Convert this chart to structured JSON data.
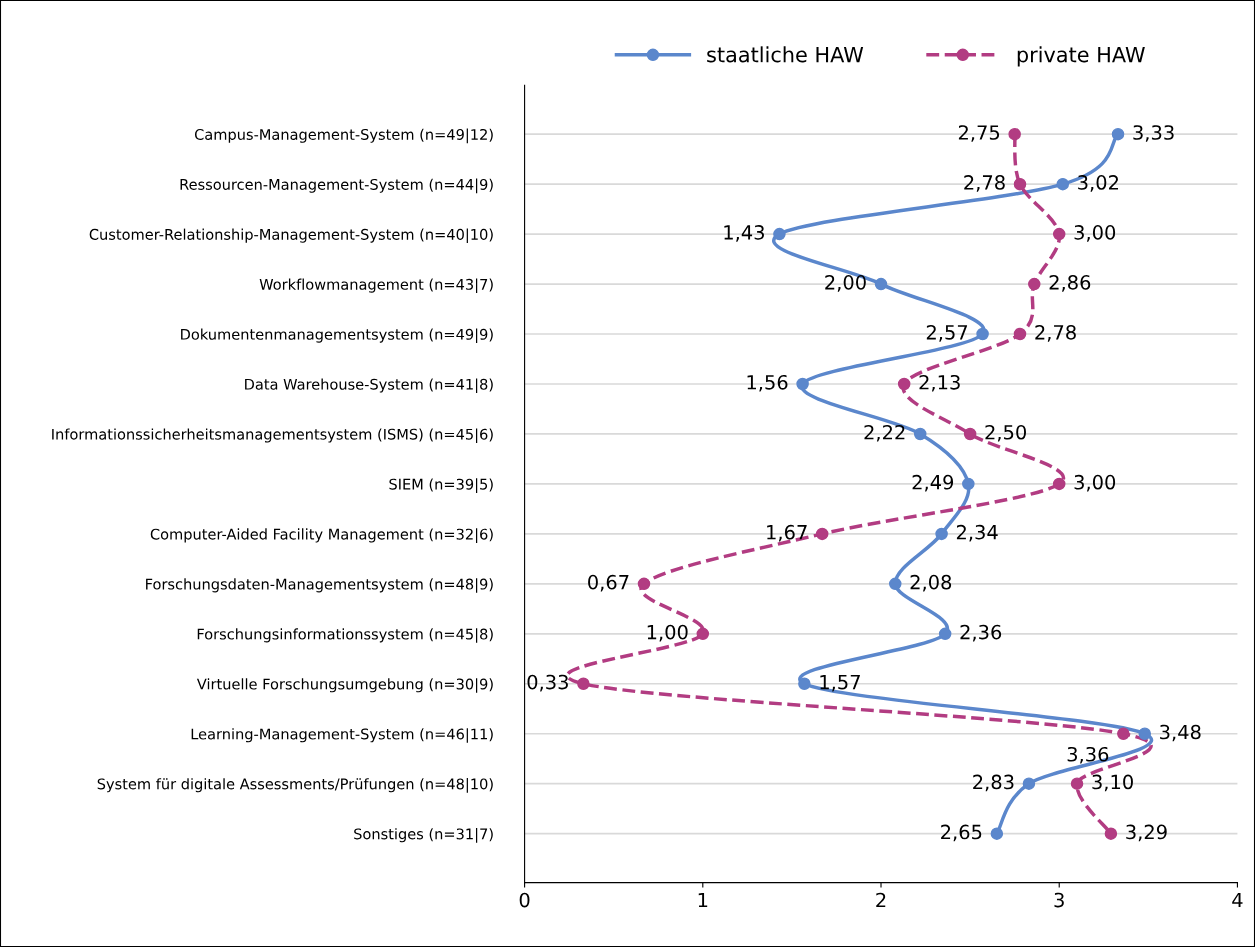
{
  "chart_data": {
    "type": "line",
    "orientation": "horizontal",
    "categories": [
      "Campus-Management-System (n=49|12)",
      "Ressourcen-Management-System (n=44|9)",
      "Customer-Relationship-Management-System (n=40|10)",
      "Workflowmanagement (n=43|7)",
      "Dokumentenmanagementsystem (n=49|9)",
      "Data Warehouse-System (n=41|8)",
      "Informationssicherheitsmanagementsystem (ISMS) (n=45|6)",
      "SIEM (n=39|5)",
      "Computer-Aided Facility Management (n=32|6)",
      "Forschungsdaten-Managementsystem (n=48|9)",
      "Forschungsinformationssystem (n=45|8)",
      "Virtuelle Forschungsumgebung (n=30|9)",
      "Learning-Management-System (n=46|11)",
      "System für digitale Assessments/Prüfungen (n=48|10)",
      "Sonstiges (n=31|7)"
    ],
    "series": [
      {
        "name": "staatliche HAW",
        "color": "#5b87cc",
        "line_style": "solid",
        "values": [
          3.33,
          3.02,
          1.43,
          2.0,
          2.57,
          1.56,
          2.22,
          2.49,
          2.34,
          2.08,
          2.36,
          1.57,
          3.48,
          2.83,
          2.65
        ],
        "value_labels": [
          "3,33",
          "3,02",
          "1,43",
          "2,00",
          "2,57",
          "1,56",
          "2,22",
          "2,49",
          "2,34",
          "2,08",
          "2,36",
          "1,57",
          "3,48",
          "2,83",
          "2,65"
        ]
      },
      {
        "name": "private HAW",
        "color": "#b23c82",
        "line_style": "dashed",
        "values": [
          2.75,
          2.78,
          3.0,
          2.86,
          2.78,
          2.13,
          2.5,
          3.0,
          1.67,
          0.67,
          1.0,
          0.33,
          3.36,
          3.1,
          3.29
        ],
        "value_labels": [
          "2,75",
          "2,78",
          "3,00",
          "2,86",
          "2,78",
          "2,13",
          "2,50",
          "3,00",
          "1,67",
          "0,67",
          "1,00",
          "0,33",
          "3,36",
          "3,10",
          "3,29"
        ]
      }
    ],
    "xlim": [
      0,
      4
    ],
    "xticks": [
      0,
      1,
      2,
      3,
      4
    ],
    "grid": "y",
    "legend": "top",
    "marker": "circle"
  }
}
